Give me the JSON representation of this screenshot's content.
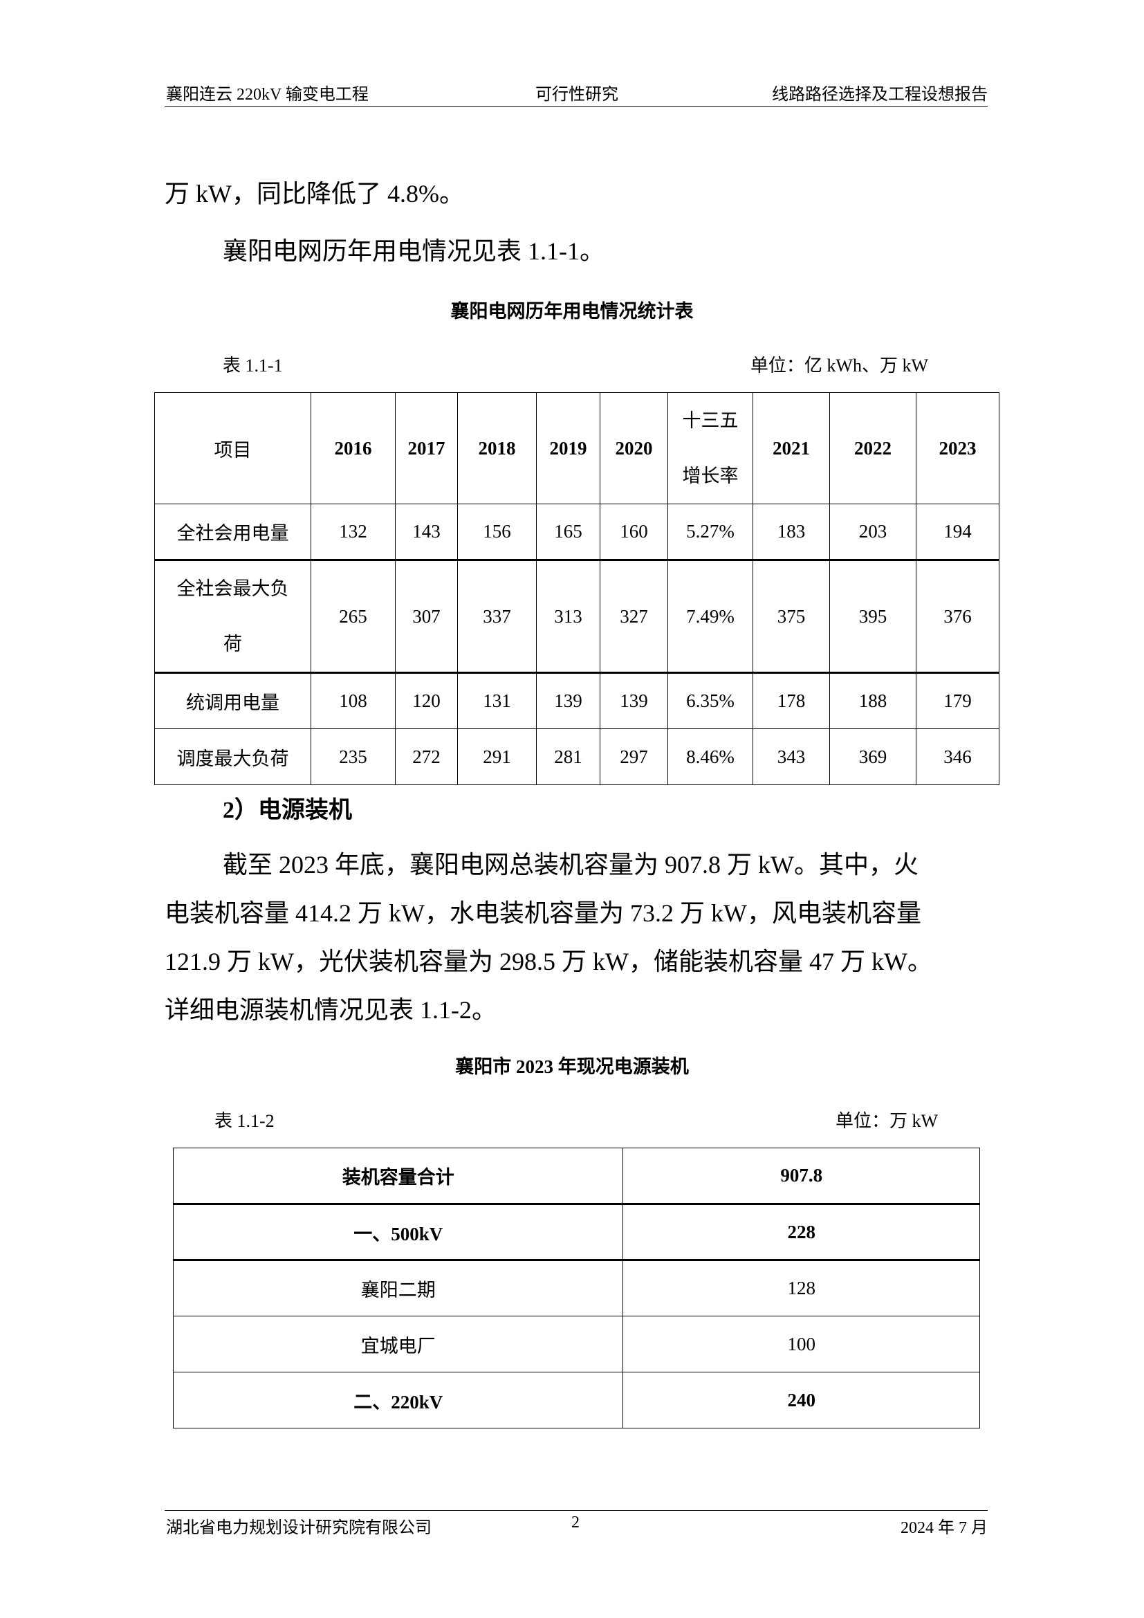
{
  "header": {
    "left": "襄阳连云 220kV 输变电工程",
    "center": "可行性研究",
    "right": "线路路径选择及工程设想报告"
  },
  "body": {
    "line1": "万 kW，同比降低了 4.8%。",
    "line2": "襄阳电网历年用电情况见表 1.1-1。"
  },
  "table1": {
    "title": "襄阳电网历年用电情况统计表",
    "label": "表 1.1-1",
    "unit": "单位：亿 kWh、万 kW",
    "headers": [
      "项目",
      "2016",
      "2017",
      "2018",
      "2019",
      "2020",
      "十三五增长率",
      "2021",
      "2022",
      "2023"
    ],
    "rows": [
      {
        "item": "全社会用电量",
        "values": [
          "132",
          "143",
          "156",
          "165",
          "160",
          "5.27%",
          "183",
          "203",
          "194"
        ]
      },
      {
        "item": "全社会最大负荷",
        "values": [
          "265",
          "307",
          "337",
          "313",
          "327",
          "7.49%",
          "375",
          "395",
          "376"
        ]
      },
      {
        "item": "统调用电量",
        "values": [
          "108",
          "120",
          "131",
          "139",
          "139",
          "6.35%",
          "178",
          "188",
          "179"
        ]
      },
      {
        "item": "调度最大负荷",
        "values": [
          "235",
          "272",
          "291",
          "281",
          "297",
          "8.46%",
          "343",
          "369",
          "346"
        ]
      }
    ]
  },
  "section": {
    "heading": "2）电源装机",
    "para": [
      "截至 2023 年底，襄阳电网总装机容量为 907.8 万 kW。其中，火",
      "电装机容量 414.2 万 kW，水电装机容量为 73.2 万 kW，风电装机容量",
      "121.9 万 kW，光伏装机容量为 298.5 万 kW，储能装机容量 47 万 kW。",
      "详细电源装机情况见表 1.1-2。"
    ]
  },
  "table2": {
    "title": "襄阳市 2023 年现况电源装机",
    "label": "表 1.1-2",
    "unit": "单位：万 kW",
    "rows": [
      {
        "name": "装机容量合计",
        "value": "907.8",
        "bold": true
      },
      {
        "name": "一、500kV",
        "value": "228",
        "bold": true
      },
      {
        "name": "襄阳二期",
        "value": "128",
        "bold": false
      },
      {
        "name": "宜城电厂",
        "value": "100",
        "bold": false
      },
      {
        "name": "二、220kV",
        "value": "240",
        "bold": true
      }
    ]
  },
  "footer": {
    "left": "湖北省电力规划设计研究院有限公司",
    "page": "2",
    "right": "2024 年 7 月"
  }
}
